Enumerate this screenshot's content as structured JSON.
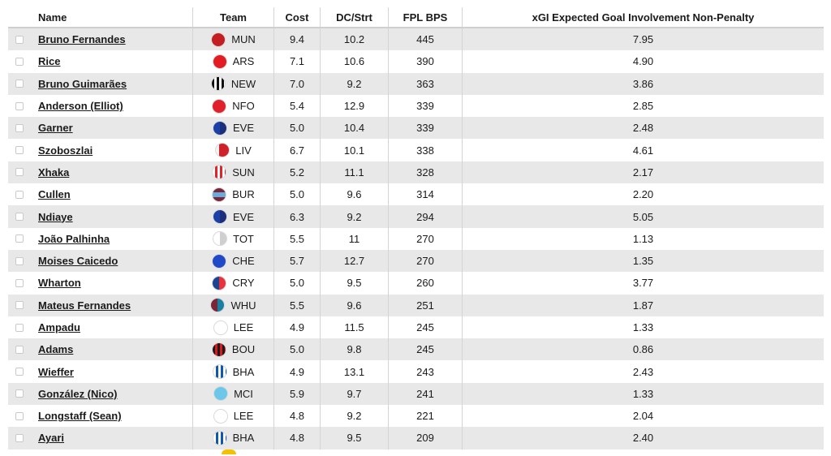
{
  "header": {
    "name": "Name",
    "team": "Team",
    "cost": "Cost",
    "dc": "DC/Strt",
    "bps": "FPL BPS",
    "xgi": "xGI Expected Goal Involvement Non-Penalty"
  },
  "badge_colors": {
    "MUN": "#c41e22",
    "ARS": "#e31b23",
    "NEW": "repeating-linear-gradient(90deg,#111 0 3px,#fff 3px 6px)",
    "NFO": "#e0202b",
    "EVE": "linear-gradient(90deg,#1c3fa8 0 50%,#1b2f7a 50%)",
    "LIV": "linear-gradient(90deg,#f2f2f2 0 25%,#d0202a 25%)",
    "SUN": "repeating-linear-gradient(90deg,#fff 0 3px,#e2232a 3px 6px)",
    "BUR": "linear-gradient(180deg,#7a263a 0 30%,#6cabdd 30% 70%,#7a263a 70%)",
    "TOT": "linear-gradient(90deg,#ffffff 0 50%,#cfcfcf 50%)",
    "CHE": "#2048c7",
    "CRY": "linear-gradient(90deg,#1b458f 0 50%,#e8323c 50%)",
    "WHU": "linear-gradient(90deg,#7a263a 0 50%,#1b7fa0 50%)",
    "LEE": "#ffffff",
    "BOU": "repeating-linear-gradient(90deg,#1a1a1a 0 3px,#d71920 3px 6px)",
    "BHA": "repeating-linear-gradient(90deg,#ffffff 0 3px,#0f57b0 3px 6px)",
    "MCI": "#6cc7ea"
  },
  "rows": [
    {
      "name": "Bruno Fernandes",
      "team": "MUN",
      "cost": "9.4",
      "dc": "10.2",
      "bps": "445",
      "xgi": "7.95"
    },
    {
      "name": "Rice",
      "team": "ARS",
      "cost": "7.1",
      "dc": "10.6",
      "bps": "390",
      "xgi": "4.90"
    },
    {
      "name": "Bruno Guimarães",
      "team": "NEW",
      "cost": "7.0",
      "dc": "9.2",
      "bps": "363",
      "xgi": "3.86"
    },
    {
      "name": "Anderson (Elliot)",
      "team": "NFO",
      "cost": "5.4",
      "dc": "12.9",
      "bps": "339",
      "xgi": "2.85"
    },
    {
      "name": "Garner",
      "team": "EVE",
      "cost": "5.0",
      "dc": "10.4",
      "bps": "339",
      "xgi": "2.48"
    },
    {
      "name": "Szoboszlai",
      "team": "LIV",
      "cost": "6.7",
      "dc": "10.1",
      "bps": "338",
      "xgi": "4.61"
    },
    {
      "name": "Xhaka",
      "team": "SUN",
      "cost": "5.2",
      "dc": "11.1",
      "bps": "328",
      "xgi": "2.17"
    },
    {
      "name": "Cullen",
      "team": "BUR",
      "cost": "5.0",
      "dc": "9.6",
      "bps": "314",
      "xgi": "2.20"
    },
    {
      "name": "Ndiaye",
      "team": "EVE",
      "cost": "6.3",
      "dc": "9.2",
      "bps": "294",
      "xgi": "5.05"
    },
    {
      "name": "João Palhinha",
      "team": "TOT",
      "cost": "5.5",
      "dc": "11",
      "bps": "270",
      "xgi": "1.13"
    },
    {
      "name": "Moises Caicedo",
      "team": "CHE",
      "cost": "5.7",
      "dc": "12.7",
      "bps": "270",
      "xgi": "1.35"
    },
    {
      "name": "Wharton",
      "team": "CRY",
      "cost": "5.0",
      "dc": "9.5",
      "bps": "260",
      "xgi": "3.77"
    },
    {
      "name": "Mateus Fernandes",
      "team": "WHU",
      "cost": "5.5",
      "dc": "9.6",
      "bps": "251",
      "xgi": "1.87"
    },
    {
      "name": "Ampadu",
      "team": "LEE",
      "cost": "4.9",
      "dc": "11.5",
      "bps": "245",
      "xgi": "1.33"
    },
    {
      "name": "Adams",
      "team": "BOU",
      "cost": "5.0",
      "dc": "9.8",
      "bps": "245",
      "xgi": "0.86"
    },
    {
      "name": "Wieffer",
      "team": "BHA",
      "cost": "4.9",
      "dc": "13.1",
      "bps": "243",
      "xgi": "2.43"
    },
    {
      "name": "González (Nico)",
      "team": "MCI",
      "cost": "5.9",
      "dc": "9.7",
      "bps": "241",
      "xgi": "1.33"
    },
    {
      "name": "Longstaff (Sean)",
      "team": "LEE",
      "cost": "4.8",
      "dc": "9.2",
      "bps": "221",
      "xgi": "2.04"
    },
    {
      "name": "Ayari",
      "team": "BHA",
      "cost": "4.8",
      "dc": "9.5",
      "bps": "209",
      "xgi": "2.40"
    }
  ]
}
